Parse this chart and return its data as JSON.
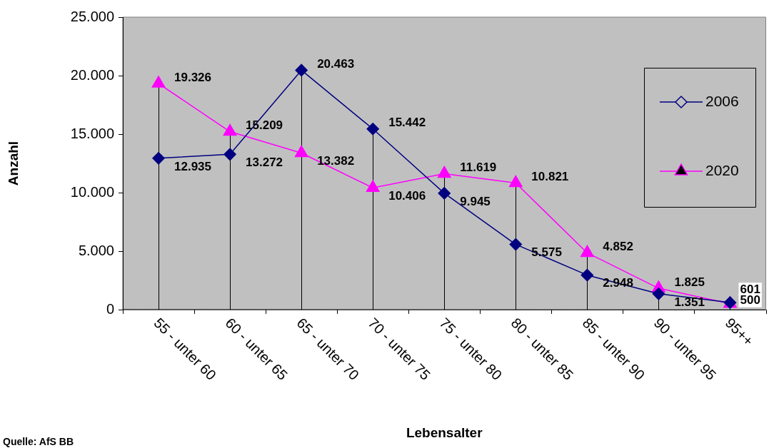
{
  "chart_data": {
    "type": "line",
    "xlabel": "Lebensalter",
    "ylabel": "Anzahl",
    "categories": [
      "55 - unter 60",
      "60 - unter 65",
      "65 - unter 70",
      "70 - unter 75",
      "75 - unter 80",
      "80 - unter 85",
      "85 - unter 90",
      "90 - unter 95",
      "95++"
    ],
    "series": [
      {
        "name": "2006",
        "color": "#000080",
        "marker": "diamond",
        "values": [
          12935,
          13272,
          20463,
          15442,
          9945,
          5575,
          2948,
          1351,
          601
        ],
        "value_labels": [
          "12.935",
          "13.272",
          "20.463",
          "15.442",
          "9.945",
          "5.575",
          "2.948",
          "1.351",
          "601"
        ]
      },
      {
        "name": "2020",
        "color": "#ff00ff",
        "marker": "triangle",
        "values": [
          19326,
          15209,
          13382,
          10406,
          11619,
          10821,
          4852,
          1825,
          500
        ],
        "value_labels": [
          "19.326",
          "15.209",
          "13.382",
          "10.406",
          "11.619",
          "10.821",
          "4.852",
          "1.825",
          "500"
        ]
      }
    ],
    "ylim": [
      0,
      25000
    ],
    "yticks": [
      {
        "value": 0,
        "label": "0"
      },
      {
        "value": 5000,
        "label": "5.000"
      },
      {
        "value": 10000,
        "label": "10.000"
      },
      {
        "value": 15000,
        "label": "15.000"
      },
      {
        "value": 20000,
        "label": "20.000"
      },
      {
        "value": 25000,
        "label": "25.000"
      }
    ],
    "grid": "x",
    "legend": "right",
    "annotations": [
      "Quelle: AfS BB"
    ]
  }
}
